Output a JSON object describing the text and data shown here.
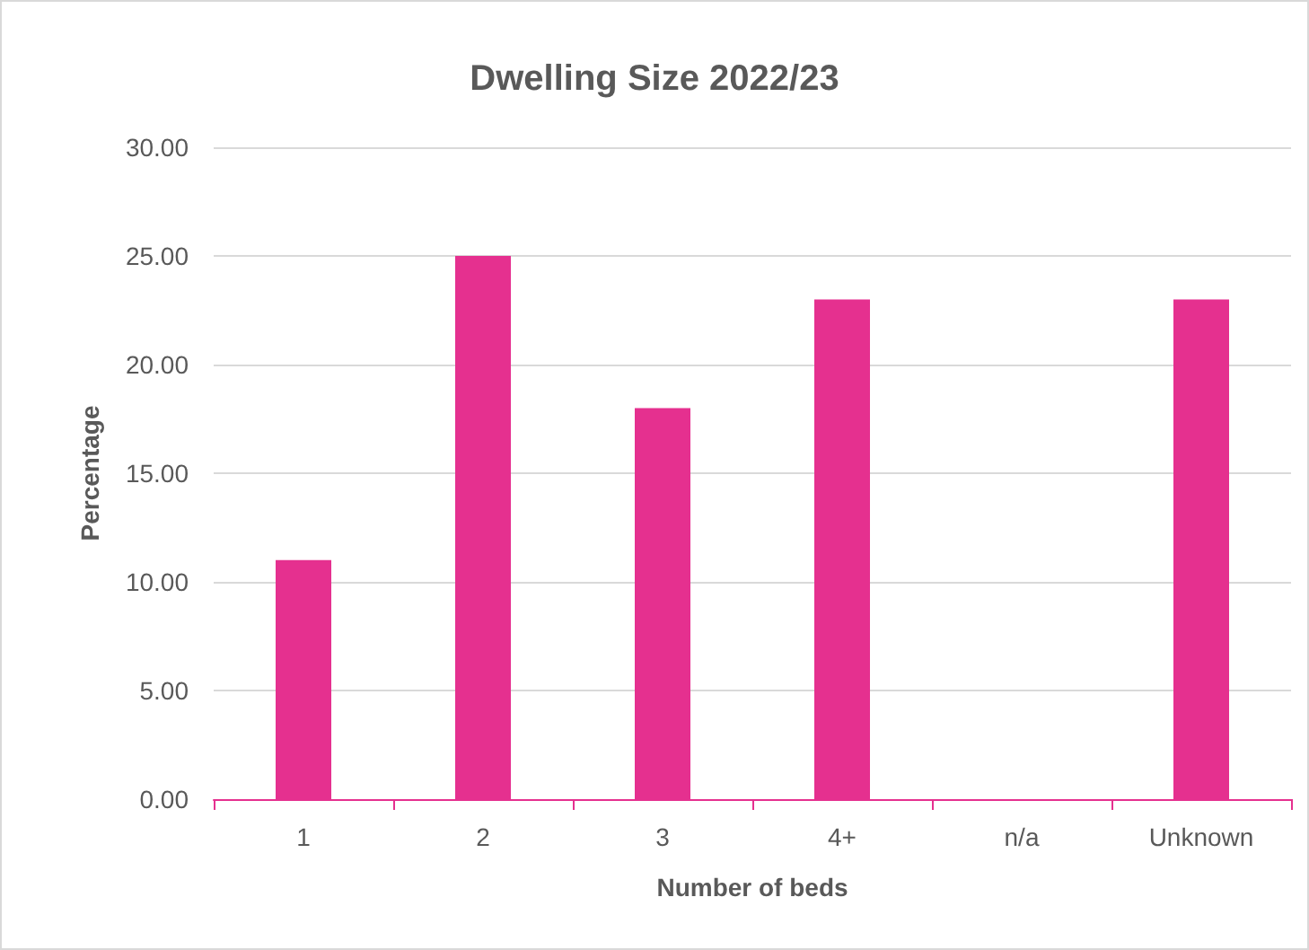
{
  "chart_data": {
    "type": "bar",
    "title": "Dwelling Size 2022/23",
    "xlabel": "Number of beds",
    "ylabel": "Percentage",
    "categories": [
      "1",
      "2",
      "3",
      "4+",
      "n/a",
      "Unknown"
    ],
    "values": [
      11,
      25,
      18,
      23,
      0,
      23
    ],
    "color": "#e5308f",
    "ylim": [
      0,
      30
    ],
    "yticks": [
      {
        "value": 0,
        "label": "0.00"
      },
      {
        "value": 5,
        "label": "5.00"
      },
      {
        "value": 10,
        "label": "10.00"
      },
      {
        "value": 15,
        "label": "15.00"
      },
      {
        "value": 20,
        "label": "20.00"
      },
      {
        "value": 25,
        "label": "25.00"
      },
      {
        "value": 30,
        "label": "30.00"
      }
    ],
    "grid": "y"
  }
}
